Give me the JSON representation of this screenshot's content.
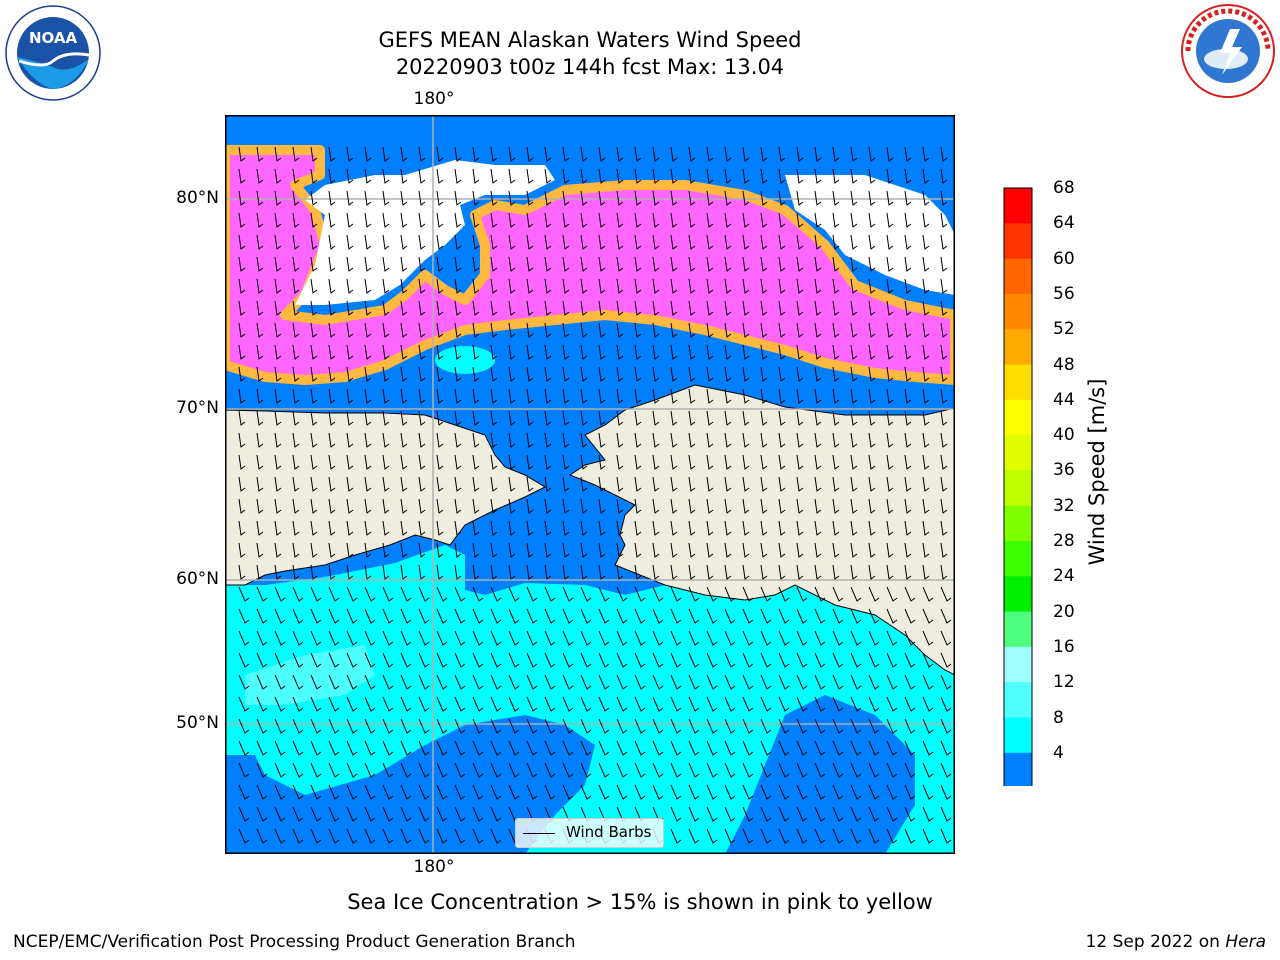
{
  "title_line1": "GEFS MEAN Alaskan Waters Wind Speed",
  "title_line2": "20220903 t00z 144h fcst   Max: 13.04",
  "logos": {
    "left": "noaa-logo",
    "right": "national-weather-service-logo"
  },
  "map": {
    "lon_label": "180°",
    "lat_labels": [
      "80°N",
      "70°N",
      "60°N",
      "50°N"
    ],
    "legend": "Wind Barbs",
    "colors": {
      "ocean_deep": "#0080ff",
      "ocean_mid": "#00ffff",
      "ocean_light": "#4dffff",
      "land": "#efeddf",
      "ice_pink": "#ff66ff",
      "ice_orange": "#ffb840",
      "grid": "#b0b0b0"
    }
  },
  "colorbar": {
    "label": "Wind Speed [m/s]",
    "ticks": [
      "68",
      "64",
      "60",
      "56",
      "52",
      "48",
      "44",
      "40",
      "36",
      "32",
      "28",
      "24",
      "20",
      "16",
      "12",
      "8",
      "4"
    ],
    "colors": [
      "#ff0000",
      "#ff3300",
      "#ff6600",
      "#ff8800",
      "#ffaa00",
      "#ffdd00",
      "#ffff00",
      "#e0ff00",
      "#c0ff00",
      "#80ff00",
      "#40ff00",
      "#00ee00",
      "#50ff80",
      "#a0ffff",
      "#50ffff",
      "#00ffff",
      "#0080ff"
    ],
    "under_color": "#0000ff"
  },
  "note": "Sea Ice Concentration > 15% is shown in pink to yellow",
  "footer_left": "NCEP/EMC/Verification Post Processing Product Generation Branch",
  "footer_right_date": "12 Sep 2022 on ",
  "footer_right_host": "Hera"
}
